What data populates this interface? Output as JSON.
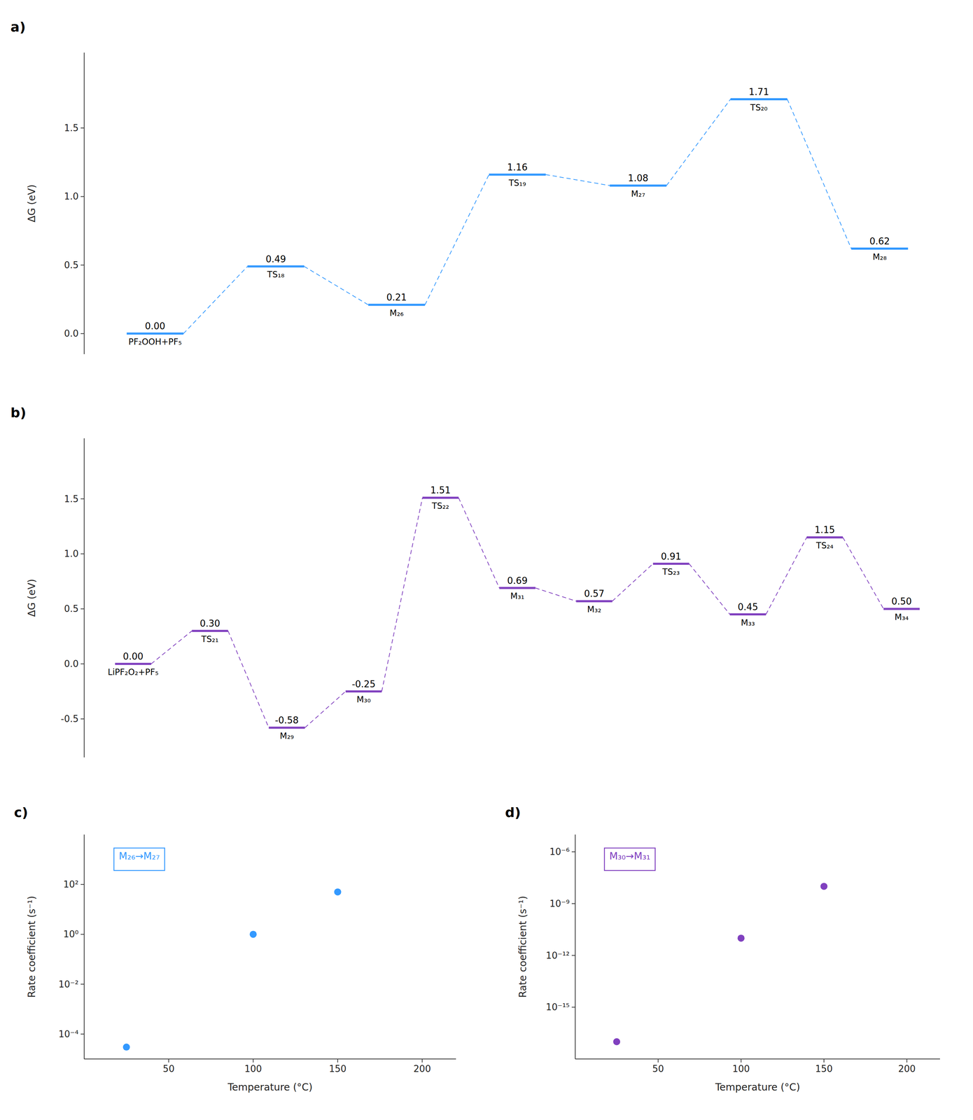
{
  "chart_data": [
    {
      "type": "levels",
      "title": "a)",
      "categories": [
        "PF₂OOH+PF₅",
        "TS₁₈",
        "M₂₆",
        "TS₁₉",
        "M₂₇",
        "TS₂₀",
        "M₂₈"
      ],
      "values": [
        0,
        0.49,
        0.21,
        1.16,
        1.08,
        1.71,
        0.62
      ],
      "value_labels": [
        "0.00",
        "0.49",
        "0.21",
        "1.16",
        "1.08",
        "1.71",
        "0.62"
      ],
      "data_labels": true,
      "color": "#3399FF",
      "line_style": "dashed",
      "ylabel": "ΔG (eV)",
      "ylim": [
        -0.15,
        2.05
      ],
      "yticks": [
        {
          "value": 0,
          "label": "0.0"
        },
        0.5,
        {
          "value": 1,
          "label": "1.0"
        },
        1.5
      ],
      "grid": false
    },
    {
      "type": "levels",
      "title": "b)",
      "categories": [
        "LiPF₂O₂+PF₅",
        "TS₂₁",
        "M₂₉",
        "M₃₀",
        "TS₂₂",
        "M₃₁",
        "M₃₂",
        "TS₂₃",
        "M₃₃",
        "TS₂₄",
        "M₃₄"
      ],
      "values": [
        0,
        0.3,
        -0.58,
        -0.25,
        1.51,
        0.69,
        0.57,
        0.91,
        0.45,
        1.15,
        0.5
      ],
      "value_labels": [
        "0.00",
        "0.30",
        "-0.58",
        "-0.25",
        "1.51",
        "0.69",
        "0.57",
        "0.91",
        "0.45",
        "1.15",
        "0.50"
      ],
      "data_labels": true,
      "color": "#8040BF",
      "line_style": "dashed",
      "ylabel": "ΔG (eV)",
      "ylim": [
        -0.85,
        2.05
      ],
      "yticks": [
        -0.5,
        {
          "value": 0,
          "label": "0.0"
        },
        0.5,
        {
          "value": 1,
          "label": "1.0"
        },
        1.5
      ],
      "grid": false
    },
    {
      "type": "scatter",
      "title": "c)",
      "x": [
        25,
        100,
        150
      ],
      "series": [
        {
          "name": "M₂₆→M₂₇",
          "color": "#3399FF",
          "values": [
            3e-05,
            1.0,
            50.0
          ]
        }
      ],
      "xlabel": "Temperature (°C)",
      "ylabel": "Rate coefficient (s⁻¹)",
      "xlim": [
        0,
        220
      ],
      "xticks": [
        50,
        100,
        150,
        200
      ],
      "ylim": [
        1e-05,
        10000.0
      ],
      "yticks": [
        {
          "value": 0.0001,
          "label": "10⁻⁴"
        },
        {
          "value": 0.01,
          "label": "10⁻²"
        },
        {
          "value": 1,
          "label": "10⁰"
        },
        {
          "value": 100,
          "label": "10²"
        }
      ],
      "log": "y",
      "legend": "upper left",
      "grid": false
    },
    {
      "type": "scatter",
      "title": "d)",
      "x": [
        25,
        100,
        150
      ],
      "series": [
        {
          "name": "M₃₀→M₃₁",
          "color": "#8040BF",
          "values": [
            1e-17,
            1e-11,
            1e-08
          ]
        }
      ],
      "xlabel": "Temperature (°C)",
      "ylabel": "Rate coefficient (s⁻¹)",
      "xlim": [
        0,
        220
      ],
      "xticks": [
        50,
        100,
        150,
        200
      ],
      "ylim": [
        1e-18,
        1e-05
      ],
      "yticks": [
        {
          "value": 1e-15,
          "label": "10⁻¹⁵"
        },
        {
          "value": 1e-12,
          "label": "10⁻¹²"
        },
        {
          "value": 1e-09,
          "label": "10⁻⁹"
        },
        {
          "value": 1e-06,
          "label": "10⁻⁶"
        }
      ],
      "log": "y",
      "legend": "upper left",
      "grid": false
    }
  ]
}
